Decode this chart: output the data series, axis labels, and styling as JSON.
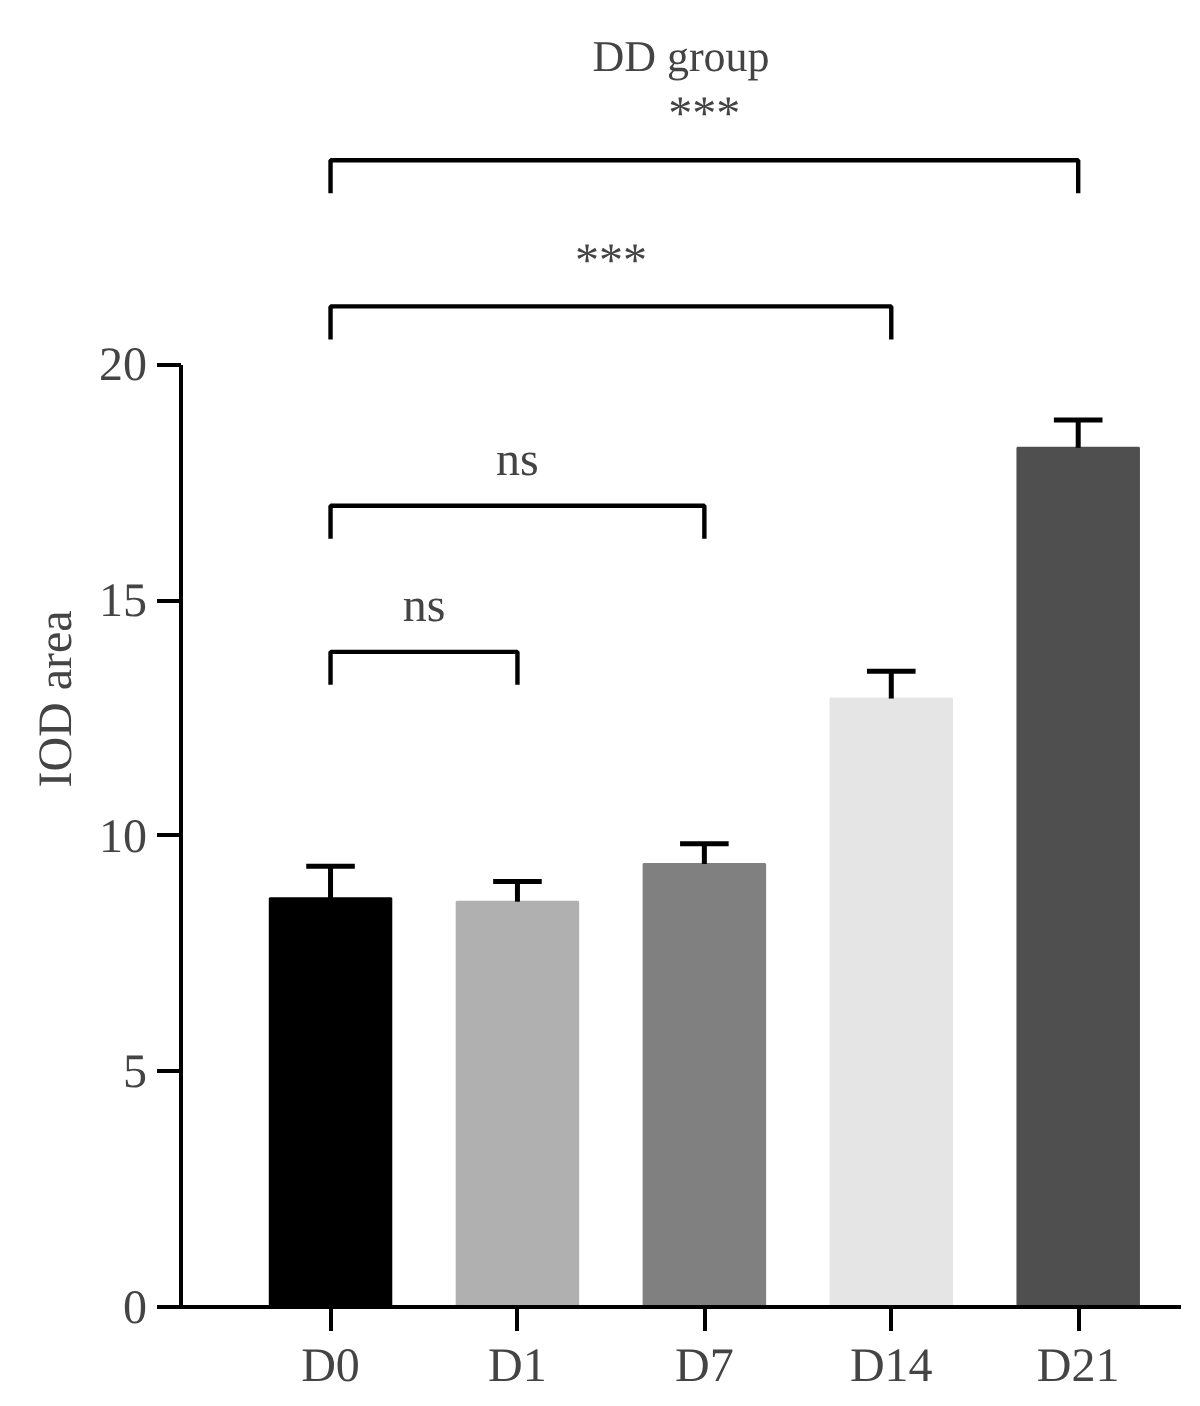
{
  "chart_data": {
    "type": "bar",
    "title": "DD group",
    "ylabel": "IOD area",
    "categories": [
      "D0",
      "D1",
      "D7",
      "D14",
      "D21"
    ],
    "values": [
      8.67,
      8.6,
      9.4,
      12.91,
      18.23
    ],
    "errors": [
      0.68,
      0.43,
      0.43,
      0.58,
      0.59
    ],
    "colors": [
      "#000000",
      "#b0b0b0",
      "#808080",
      "#e5e5e5",
      "#4f4f4f"
    ],
    "ylim": [
      0,
      20
    ],
    "yticks": [
      0,
      5,
      10,
      15,
      20
    ],
    "grid": false,
    "annotations": [
      "ns",
      "ns",
      "***",
      "***"
    ]
  }
}
